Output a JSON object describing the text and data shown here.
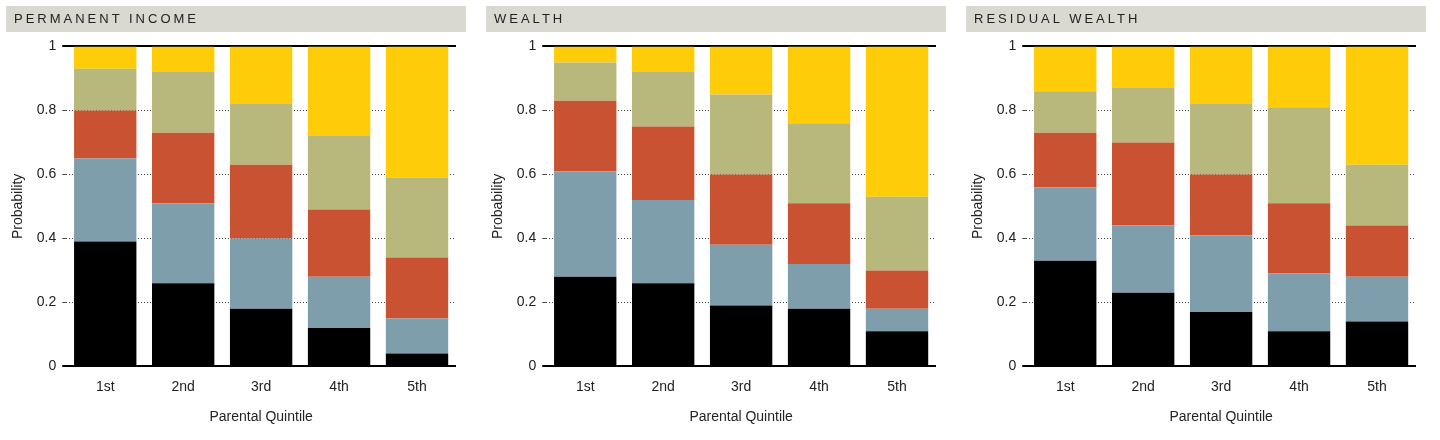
{
  "chart_data": [
    {
      "type": "bar",
      "title": "PERMANENT INCOME",
      "xlabel": "Parental Quintile",
      "ylabel": "Probability",
      "stacked": true,
      "categories": [
        "1st",
        "2nd",
        "3rd",
        "4th",
        "5th"
      ],
      "ylim": [
        0,
        1
      ],
      "yticks": [
        0,
        0.2,
        0.4,
        0.6,
        0.8,
        1
      ],
      "grid": "y",
      "series": [
        {
          "color": "#000000",
          "values": [
            0.39,
            0.26,
            0.18,
            0.12,
            0.04
          ]
        },
        {
          "color": "#7f9eac",
          "values": [
            0.26,
            0.25,
            0.22,
            0.16,
            0.11
          ]
        },
        {
          "color": "#c85232",
          "values": [
            0.15,
            0.22,
            0.23,
            0.21,
            0.19
          ]
        },
        {
          "color": "#b8b77c",
          "values": [
            0.13,
            0.19,
            0.19,
            0.23,
            0.25
          ]
        },
        {
          "color": "#fecc08",
          "values": [
            0.07,
            0.08,
            0.18,
            0.28,
            0.41
          ]
        }
      ]
    },
    {
      "type": "bar",
      "title": "WEALTH",
      "xlabel": "Parental Quintile",
      "ylabel": "Probability",
      "stacked": true,
      "categories": [
        "1st",
        "2nd",
        "3rd",
        "4th",
        "5th"
      ],
      "ylim": [
        0,
        1
      ],
      "yticks": [
        0,
        0.2,
        0.4,
        0.6,
        0.8,
        1
      ],
      "grid": "y",
      "series": [
        {
          "color": "#000000",
          "values": [
            0.28,
            0.26,
            0.19,
            0.18,
            0.11
          ]
        },
        {
          "color": "#7f9eac",
          "values": [
            0.33,
            0.26,
            0.19,
            0.14,
            0.07
          ]
        },
        {
          "color": "#c85232",
          "values": [
            0.22,
            0.23,
            0.22,
            0.19,
            0.12
          ]
        },
        {
          "color": "#b8b77c",
          "values": [
            0.12,
            0.17,
            0.25,
            0.25,
            0.23
          ]
        },
        {
          "color": "#fecc08",
          "values": [
            0.05,
            0.08,
            0.15,
            0.24,
            0.47
          ]
        }
      ]
    },
    {
      "type": "bar",
      "title": "RESIDUAL WEALTH",
      "xlabel": "Parental Quintile",
      "ylabel": "Probability",
      "stacked": true,
      "categories": [
        "1st",
        "2nd",
        "3rd",
        "4th",
        "5th"
      ],
      "ylim": [
        0,
        1
      ],
      "yticks": [
        0,
        0.2,
        0.4,
        0.6,
        0.8,
        1
      ],
      "grid": "y",
      "series": [
        {
          "color": "#000000",
          "values": [
            0.33,
            0.23,
            0.17,
            0.11,
            0.14
          ]
        },
        {
          "color": "#7f9eac",
          "values": [
            0.23,
            0.21,
            0.24,
            0.18,
            0.14
          ]
        },
        {
          "color": "#c85232",
          "values": [
            0.17,
            0.26,
            0.19,
            0.22,
            0.16
          ]
        },
        {
          "color": "#b8b77c",
          "values": [
            0.13,
            0.17,
            0.22,
            0.3,
            0.19
          ]
        },
        {
          "color": "#fecc08",
          "values": [
            0.14,
            0.13,
            0.18,
            0.19,
            0.37
          ]
        }
      ]
    }
  ]
}
